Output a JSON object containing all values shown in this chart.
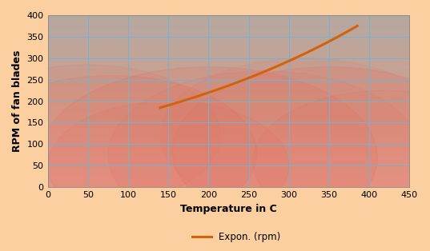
{
  "title": "",
  "xlabel": "Temperature in C",
  "ylabel": "RPM of fan blades",
  "xlim": [
    0,
    450
  ],
  "ylim": [
    0,
    400
  ],
  "xticks": [
    0,
    50,
    100,
    150,
    200,
    250,
    300,
    350,
    400,
    450
  ],
  "yticks": [
    0,
    50,
    100,
    150,
    200,
    250,
    300,
    350,
    400
  ],
  "curve_x_start": 140,
  "curve_x_end": 385,
  "curve_y_start": 185,
  "curve_y_end": 375,
  "line_color_orange": "#D4620A",
  "background_outer": "#FBCFA0",
  "background_plot_upper": "#A89890",
  "background_plot_lower": "#E8A090",
  "grid_color": "#6EB5D4",
  "legend_label": "Expon. (rpm)",
  "xlabel_fontsize": 9,
  "ylabel_fontsize": 9,
  "tick_fontsize": 8,
  "line_width": 2.2
}
